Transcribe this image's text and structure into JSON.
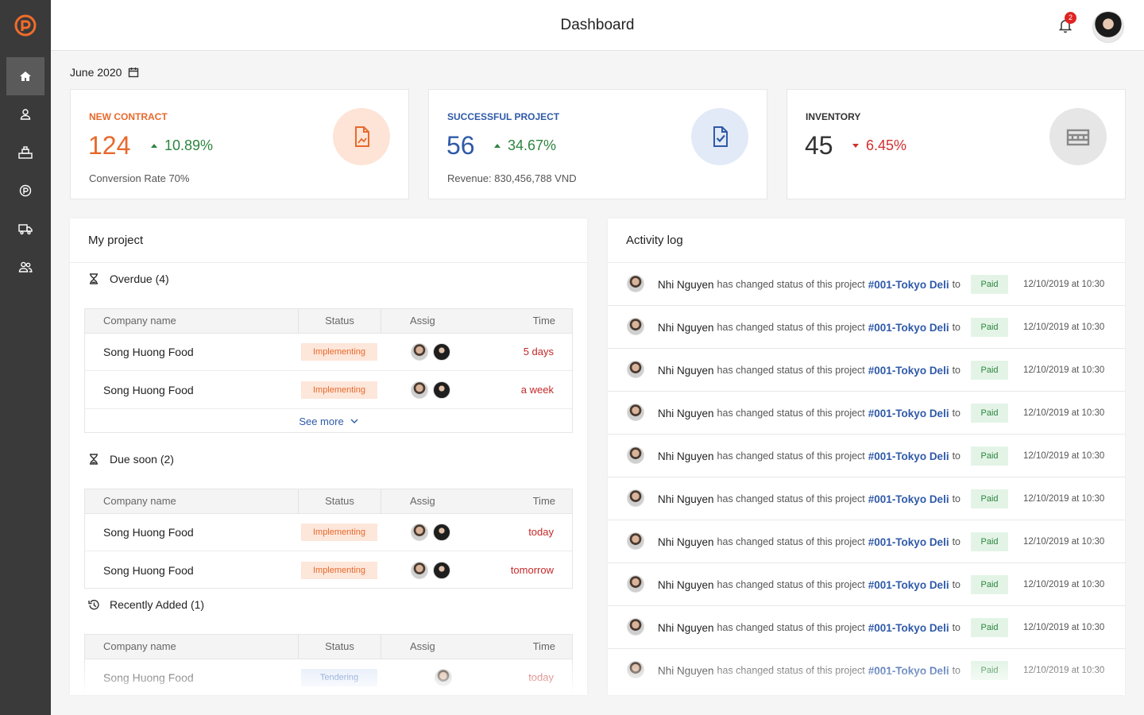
{
  "header": {
    "title": "Dashboard",
    "notifications": 2
  },
  "date": "June 2020",
  "stats": [
    {
      "label": "NEW CONTRACT",
      "value": 124,
      "change": "10.89%",
      "trend": "up",
      "footer": "Conversion Rate 70%",
      "color": "#e8692c",
      "icon_bg": "#fde4d6"
    },
    {
      "label": "SUCCESSFUL PROJECT",
      "value": 56,
      "change": "34.67%",
      "trend": "up",
      "footer": "Revenue: 830,456,788 VND",
      "color": "#2f5aa8",
      "icon_bg": "#e2e9f7"
    },
    {
      "label": "INVENTORY",
      "value": 45,
      "change": "6.45%",
      "trend": "down",
      "color": "#333333",
      "icon_bg": "#e6e6e6"
    }
  ],
  "project": {
    "title": "My project",
    "columns": [
      "Company name",
      "Status",
      "Assig",
      "Time"
    ],
    "sections": [
      {
        "title": "Overdue (4)",
        "icon": "hourglass",
        "more": "See more",
        "rows": [
          {
            "company": "Song Huong Food",
            "status": "Implementing",
            "status_color": "#e8692c",
            "status_bg": "#fde6da",
            "assignees": 2,
            "time": "5 days"
          },
          {
            "company": "Song Huong Food",
            "status": "Implementing",
            "status_color": "#e8692c",
            "status_bg": "#fde6da",
            "assignees": 2,
            "time": "a week"
          }
        ]
      },
      {
        "title": "Due soon (2)",
        "icon": "hourglass",
        "rows": [
          {
            "company": "Song Huong Food",
            "status": "Implementing",
            "status_color": "#e8692c",
            "status_bg": "#fde6da",
            "assignees": 2,
            "time": "today"
          },
          {
            "company": "Song Huong Food",
            "status": "Implementing",
            "status_color": "#e8692c",
            "status_bg": "#fde6da",
            "assignees": 2,
            "time": "tomorrow"
          }
        ]
      },
      {
        "title": "Recently Added (1)",
        "icon": "history",
        "rows": [
          {
            "company": "Song Huong Food",
            "status": "Tendering",
            "status_color": "#3b6dbf",
            "status_bg": "#e3ebf8",
            "assignees": 1,
            "time": "today"
          }
        ]
      }
    ]
  },
  "activity": {
    "title": "Activity log",
    "entries": [
      {
        "user": "Nhi Nguyen",
        "action": "has changed status of this project",
        "project": "#001-Tokyo Deli",
        "connector": "to",
        "status": "Paid",
        "time": "12/10/2019 at 10:30"
      },
      {
        "user": "Nhi Nguyen",
        "action": "has changed status of this project",
        "project": "#001-Tokyo Deli",
        "connector": "to",
        "status": "Paid",
        "time": "12/10/2019 at 10:30"
      },
      {
        "user": "Nhi Nguyen",
        "action": "has changed status of this project",
        "project": "#001-Tokyo Deli",
        "connector": "to",
        "status": "Paid",
        "time": "12/10/2019 at 10:30"
      },
      {
        "user": "Nhi Nguyen",
        "action": "has changed status of this project",
        "project": "#001-Tokyo Deli",
        "connector": "to",
        "status": "Paid",
        "time": "12/10/2019 at 10:30"
      },
      {
        "user": "Nhi Nguyen",
        "action": "has changed status of this project",
        "project": "#001-Tokyo Deli",
        "connector": "to",
        "status": "Paid",
        "time": "12/10/2019 at 10:30"
      },
      {
        "user": "Nhi Nguyen",
        "action": "has changed status of this project",
        "project": "#001-Tokyo Deli",
        "connector": "to",
        "status": "Paid",
        "time": "12/10/2019 at 10:30"
      },
      {
        "user": "Nhi Nguyen",
        "action": "has changed status of this project",
        "project": "#001-Tokyo Deli",
        "connector": "to",
        "status": "Paid",
        "time": "12/10/2019 at 10:30"
      },
      {
        "user": "Nhi Nguyen",
        "action": "has changed status of this project",
        "project": "#001-Tokyo Deli",
        "connector": "to",
        "status": "Paid",
        "time": "12/10/2019 at 10:30"
      },
      {
        "user": "Nhi Nguyen",
        "action": "has changed status of this project",
        "project": "#001-Tokyo Deli",
        "connector": "to",
        "status": "Paid",
        "time": "12/10/2019 at 10:30"
      },
      {
        "user": "Nhi Nguyen",
        "action": "has changed status of this project",
        "project": "#001-Tokyo Deli",
        "connector": "to",
        "status": "Paid",
        "time": "12/10/2019 at 10:30"
      }
    ]
  }
}
